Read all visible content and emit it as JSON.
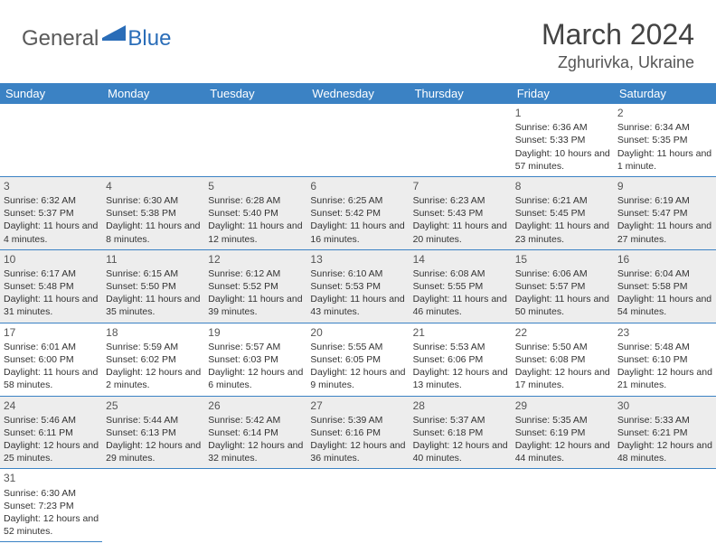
{
  "logo": {
    "general": "General",
    "blue": "Blue"
  },
  "title": "March 2024",
  "location": "Zghurivka, Ukraine",
  "colors": {
    "header_bg": "#3b82c4",
    "header_text": "#ffffff",
    "row_alt_bg": "#ededed",
    "border": "#3b82c4",
    "logo_gray": "#5a5a5a",
    "logo_blue": "#2a6db8",
    "text": "#333333"
  },
  "day_headers": [
    "Sunday",
    "Monday",
    "Tuesday",
    "Wednesday",
    "Thursday",
    "Friday",
    "Saturday"
  ],
  "weeks": [
    [
      null,
      null,
      null,
      null,
      null,
      {
        "n": "1",
        "sr": "Sunrise: 6:36 AM",
        "ss": "Sunset: 5:33 PM",
        "dl": "Daylight: 10 hours and 57 minutes."
      },
      {
        "n": "2",
        "sr": "Sunrise: 6:34 AM",
        "ss": "Sunset: 5:35 PM",
        "dl": "Daylight: 11 hours and 1 minute."
      }
    ],
    [
      {
        "n": "3",
        "sr": "Sunrise: 6:32 AM",
        "ss": "Sunset: 5:37 PM",
        "dl": "Daylight: 11 hours and 4 minutes."
      },
      {
        "n": "4",
        "sr": "Sunrise: 6:30 AM",
        "ss": "Sunset: 5:38 PM",
        "dl": "Daylight: 11 hours and 8 minutes."
      },
      {
        "n": "5",
        "sr": "Sunrise: 6:28 AM",
        "ss": "Sunset: 5:40 PM",
        "dl": "Daylight: 11 hours and 12 minutes."
      },
      {
        "n": "6",
        "sr": "Sunrise: 6:25 AM",
        "ss": "Sunset: 5:42 PM",
        "dl": "Daylight: 11 hours and 16 minutes."
      },
      {
        "n": "7",
        "sr": "Sunrise: 6:23 AM",
        "ss": "Sunset: 5:43 PM",
        "dl": "Daylight: 11 hours and 20 minutes."
      },
      {
        "n": "8",
        "sr": "Sunrise: 6:21 AM",
        "ss": "Sunset: 5:45 PM",
        "dl": "Daylight: 11 hours and 23 minutes."
      },
      {
        "n": "9",
        "sr": "Sunrise: 6:19 AM",
        "ss": "Sunset: 5:47 PM",
        "dl": "Daylight: 11 hours and 27 minutes."
      }
    ],
    [
      {
        "n": "10",
        "sr": "Sunrise: 6:17 AM",
        "ss": "Sunset: 5:48 PM",
        "dl": "Daylight: 11 hours and 31 minutes."
      },
      {
        "n": "11",
        "sr": "Sunrise: 6:15 AM",
        "ss": "Sunset: 5:50 PM",
        "dl": "Daylight: 11 hours and 35 minutes."
      },
      {
        "n": "12",
        "sr": "Sunrise: 6:12 AM",
        "ss": "Sunset: 5:52 PM",
        "dl": "Daylight: 11 hours and 39 minutes."
      },
      {
        "n": "13",
        "sr": "Sunrise: 6:10 AM",
        "ss": "Sunset: 5:53 PM",
        "dl": "Daylight: 11 hours and 43 minutes."
      },
      {
        "n": "14",
        "sr": "Sunrise: 6:08 AM",
        "ss": "Sunset: 5:55 PM",
        "dl": "Daylight: 11 hours and 46 minutes."
      },
      {
        "n": "15",
        "sr": "Sunrise: 6:06 AM",
        "ss": "Sunset: 5:57 PM",
        "dl": "Daylight: 11 hours and 50 minutes."
      },
      {
        "n": "16",
        "sr": "Sunrise: 6:04 AM",
        "ss": "Sunset: 5:58 PM",
        "dl": "Daylight: 11 hours and 54 minutes."
      }
    ],
    [
      {
        "n": "17",
        "sr": "Sunrise: 6:01 AM",
        "ss": "Sunset: 6:00 PM",
        "dl": "Daylight: 11 hours and 58 minutes."
      },
      {
        "n": "18",
        "sr": "Sunrise: 5:59 AM",
        "ss": "Sunset: 6:02 PM",
        "dl": "Daylight: 12 hours and 2 minutes."
      },
      {
        "n": "19",
        "sr": "Sunrise: 5:57 AM",
        "ss": "Sunset: 6:03 PM",
        "dl": "Daylight: 12 hours and 6 minutes."
      },
      {
        "n": "20",
        "sr": "Sunrise: 5:55 AM",
        "ss": "Sunset: 6:05 PM",
        "dl": "Daylight: 12 hours and 9 minutes."
      },
      {
        "n": "21",
        "sr": "Sunrise: 5:53 AM",
        "ss": "Sunset: 6:06 PM",
        "dl": "Daylight: 12 hours and 13 minutes."
      },
      {
        "n": "22",
        "sr": "Sunrise: 5:50 AM",
        "ss": "Sunset: 6:08 PM",
        "dl": "Daylight: 12 hours and 17 minutes."
      },
      {
        "n": "23",
        "sr": "Sunrise: 5:48 AM",
        "ss": "Sunset: 6:10 PM",
        "dl": "Daylight: 12 hours and 21 minutes."
      }
    ],
    [
      {
        "n": "24",
        "sr": "Sunrise: 5:46 AM",
        "ss": "Sunset: 6:11 PM",
        "dl": "Daylight: 12 hours and 25 minutes."
      },
      {
        "n": "25",
        "sr": "Sunrise: 5:44 AM",
        "ss": "Sunset: 6:13 PM",
        "dl": "Daylight: 12 hours and 29 minutes."
      },
      {
        "n": "26",
        "sr": "Sunrise: 5:42 AM",
        "ss": "Sunset: 6:14 PM",
        "dl": "Daylight: 12 hours and 32 minutes."
      },
      {
        "n": "27",
        "sr": "Sunrise: 5:39 AM",
        "ss": "Sunset: 6:16 PM",
        "dl": "Daylight: 12 hours and 36 minutes."
      },
      {
        "n": "28",
        "sr": "Sunrise: 5:37 AM",
        "ss": "Sunset: 6:18 PM",
        "dl": "Daylight: 12 hours and 40 minutes."
      },
      {
        "n": "29",
        "sr": "Sunrise: 5:35 AM",
        "ss": "Sunset: 6:19 PM",
        "dl": "Daylight: 12 hours and 44 minutes."
      },
      {
        "n": "30",
        "sr": "Sunrise: 5:33 AM",
        "ss": "Sunset: 6:21 PM",
        "dl": "Daylight: 12 hours and 48 minutes."
      }
    ],
    [
      {
        "n": "31",
        "sr": "Sunrise: 6:30 AM",
        "ss": "Sunset: 7:23 PM",
        "dl": "Daylight: 12 hours and 52 minutes."
      },
      null,
      null,
      null,
      null,
      null,
      null
    ]
  ]
}
